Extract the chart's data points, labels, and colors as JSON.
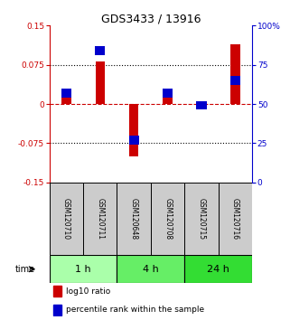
{
  "title": "GDS3433 / 13916",
  "samples": [
    "GSM120710",
    "GSM120711",
    "GSM120648",
    "GSM120708",
    "GSM120715",
    "GSM120716"
  ],
  "log10_ratio": [
    0.028,
    0.082,
    -0.1,
    0.018,
    -0.005,
    0.115
  ],
  "percentile_rank": [
    57,
    84,
    27,
    57,
    49,
    65
  ],
  "groups": [
    {
      "label": "1 h",
      "cols": [
        0,
        1
      ],
      "color": "#aaffaa"
    },
    {
      "label": "4 h",
      "cols": [
        2,
        3
      ],
      "color": "#66ee66"
    },
    {
      "label": "24 h",
      "cols": [
        4,
        5
      ],
      "color": "#33dd33"
    }
  ],
  "ylim_left": [
    -0.15,
    0.15
  ],
  "ylim_right": [
    0,
    100
  ],
  "yticks_left": [
    -0.15,
    -0.075,
    0,
    0.075,
    0.15
  ],
  "ytick_labels_left": [
    "-0.15",
    "-0.075",
    "0",
    "0.075",
    "0.15"
  ],
  "yticks_right": [
    0,
    25,
    50,
    75,
    100
  ],
  "ytick_labels_right": [
    "0",
    "25",
    "50",
    "75",
    "100%"
  ],
  "hlines": [
    0.075,
    -0.075
  ],
  "bar_color_red": "#cc0000",
  "bar_color_blue": "#0000cc",
  "bar_width": 0.28,
  "dot_size": 0.008,
  "background_color": "#ffffff",
  "sample_bg": "#cccccc",
  "legend_red": "log10 ratio",
  "legend_blue": "percentile rank within the sample"
}
